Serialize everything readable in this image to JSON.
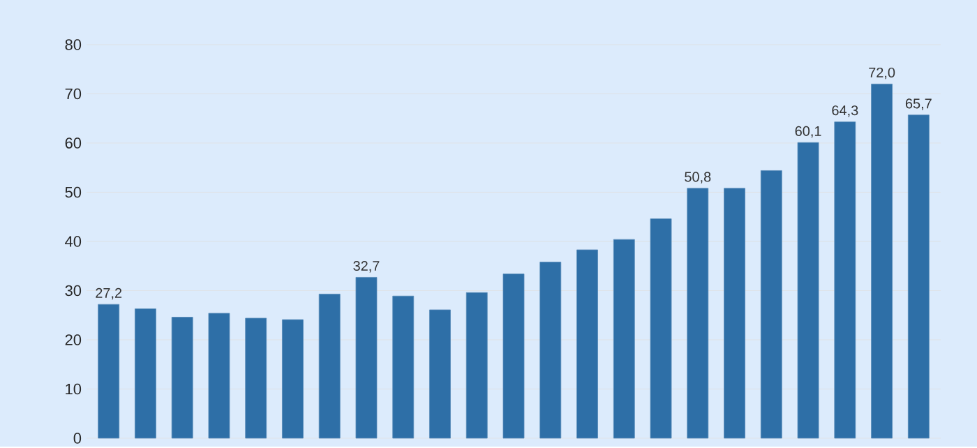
{
  "chart_data": {
    "type": "bar",
    "categories": [
      null,
      null,
      null,
      null,
      null,
      null,
      null,
      null,
      null,
      null,
      null,
      null,
      null,
      null,
      null,
      null,
      null,
      null,
      null,
      null,
      null,
      null,
      null
    ],
    "values": [
      27.2,
      26.3,
      24.6,
      25.4,
      24.4,
      24.1,
      29.3,
      32.7,
      28.9,
      26.1,
      29.6,
      33.4,
      35.8,
      38.3,
      40.4,
      44.6,
      50.8,
      50.8,
      54.4,
      60.1,
      64.3,
      72.0,
      65.7
    ],
    "value_labels": [
      "27,2",
      null,
      null,
      null,
      null,
      null,
      null,
      "32,7",
      null,
      null,
      null,
      null,
      null,
      null,
      null,
      null,
      "50,8",
      null,
      null,
      "60,1",
      "64,3",
      "72,0",
      "65,7"
    ],
    "color": "#2e6fa7",
    "ylim": [
      0,
      80
    ],
    "yticks": [
      0,
      10,
      20,
      30,
      40,
      50,
      60,
      70,
      80
    ],
    "grid": "y"
  }
}
